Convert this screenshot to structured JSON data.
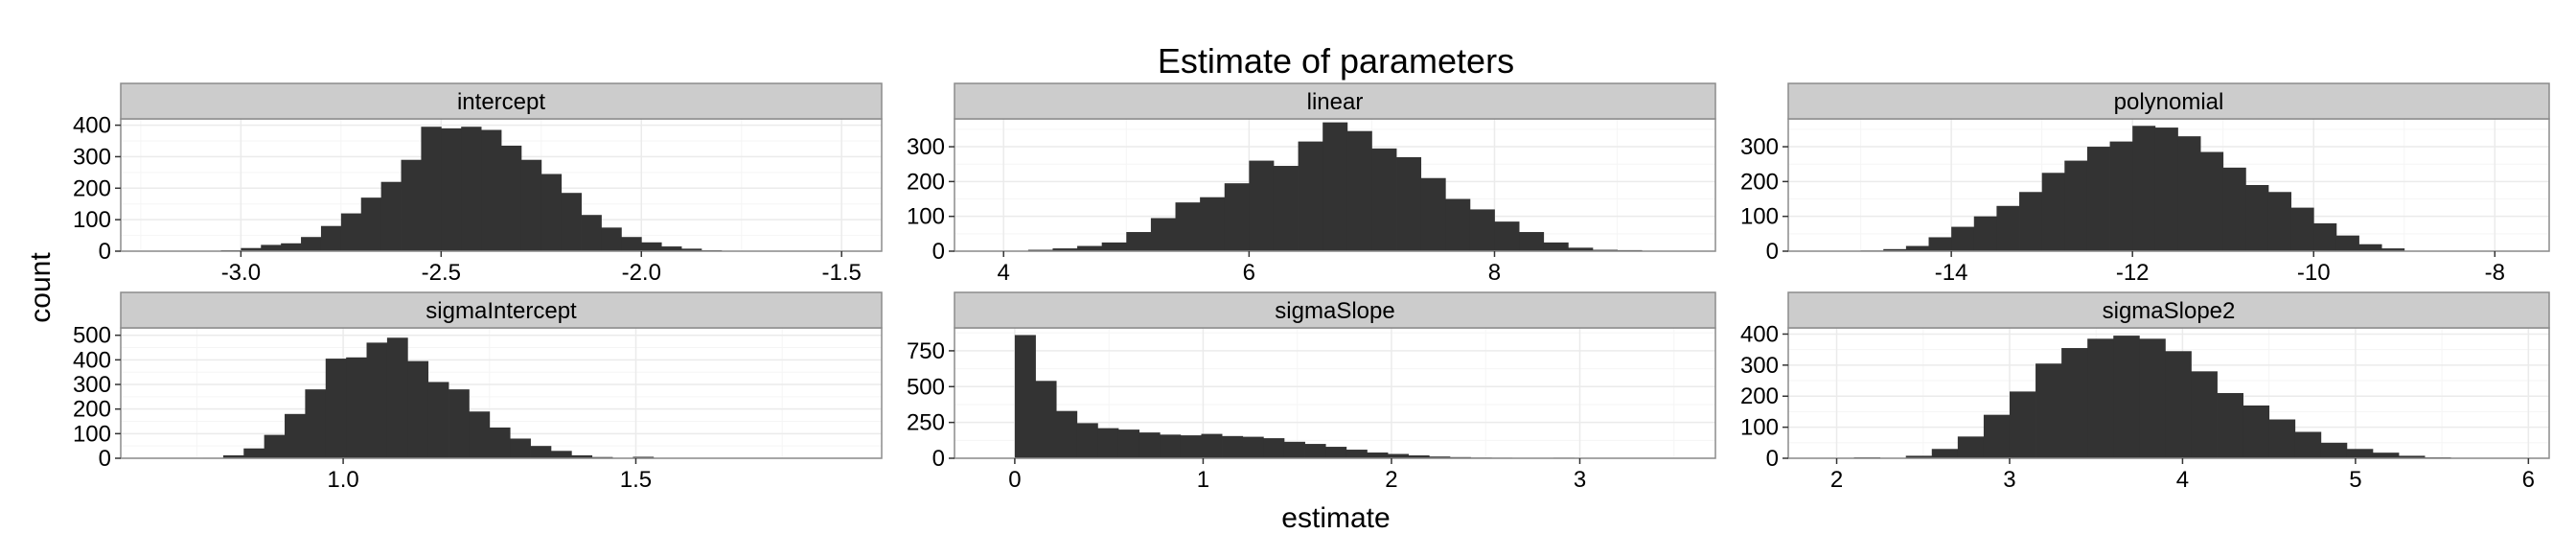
{
  "title": "Estimate of parameters",
  "xlabel": "estimate",
  "ylabel": "count",
  "colors": {
    "bar": "#333333",
    "panel_bg": "#ffffff",
    "panel_border": "#8c8c8c",
    "strip_bg": "#cccccc",
    "grid_major": "#ebebeb",
    "grid_minor": "#f5f5f5",
    "text": "#000000"
  },
  "chart_data": [
    {
      "type": "bar",
      "facet": "intercept",
      "xlim": [
        -3.3,
        -1.4
      ],
      "ylim": [
        0,
        420
      ],
      "xticks": [
        -3.0,
        -2.5,
        -2.0,
        -1.5
      ],
      "xtick_labels": [
        "-3.0",
        "-2.5",
        "-2.0",
        "-1.5"
      ],
      "yticks": [
        0,
        100,
        200,
        300,
        400
      ],
      "ytick_labels": [
        "0",
        "100",
        "200",
        "300",
        "400"
      ],
      "bins": {
        "x0": -3.1,
        "width": 0.05,
        "counts": [
          1,
          3,
          10,
          20,
          25,
          45,
          80,
          120,
          170,
          220,
          290,
          395,
          390,
          395,
          385,
          335,
          290,
          245,
          185,
          115,
          75,
          45,
          28,
          15,
          8,
          3
        ]
      }
    },
    {
      "type": "bar",
      "facet": "linear",
      "xlim": [
        3.6,
        9.8
      ],
      "ylim": [
        0,
        380
      ],
      "xticks": [
        4,
        6,
        8
      ],
      "xtick_labels": [
        "4",
        "6",
        "8"
      ],
      "yticks": [
        0,
        100,
        200,
        300
      ],
      "ytick_labels": [
        "0",
        "100",
        "200",
        "300"
      ],
      "bins": {
        "x0": 4.0,
        "width": 0.2,
        "counts": [
          1,
          4,
          8,
          15,
          25,
          55,
          95,
          140,
          155,
          195,
          260,
          245,
          315,
          370,
          345,
          295,
          270,
          210,
          150,
          120,
          85,
          55,
          25,
          10,
          4,
          3,
          1
        ]
      }
    },
    {
      "type": "bar",
      "facet": "polynomial",
      "xlim": [
        -15.8,
        -7.4
      ],
      "ylim": [
        0,
        380
      ],
      "xticks": [
        -14,
        -12,
        -10,
        -8
      ],
      "xtick_labels": [
        "-14",
        "-12",
        "-10",
        "-8"
      ],
      "yticks": [
        0,
        100,
        200,
        300
      ],
      "ytick_labels": [
        "0",
        "100",
        "200",
        "300"
      ],
      "bins": {
        "x0": -15.0,
        "width": 0.25,
        "counts": [
          2,
          6,
          15,
          40,
          70,
          100,
          130,
          170,
          225,
          260,
          300,
          315,
          360,
          355,
          330,
          285,
          240,
          190,
          170,
          125,
          80,
          45,
          20,
          8
        ]
      }
    },
    {
      "type": "bar",
      "facet": "sigmaIntercept",
      "xlim": [
        0.62,
        1.92
      ],
      "ylim": [
        0,
        530
      ],
      "xticks": [
        1.0,
        1.5
      ],
      "xtick_labels": [
        "1.0",
        "1.5"
      ],
      "yticks": [
        0,
        100,
        200,
        300,
        400,
        500
      ],
      "ytick_labels": [
        "0",
        "100",
        "200",
        "300",
        "400",
        "500"
      ],
      "bins": {
        "x0": 0.76,
        "width": 0.035,
        "counts": [
          2,
          12,
          40,
          95,
          180,
          280,
          405,
          410,
          470,
          490,
          395,
          310,
          280,
          190,
          125,
          80,
          50,
          30,
          12,
          5,
          0,
          6
        ]
      }
    },
    {
      "type": "bar",
      "facet": "sigmaSlope",
      "xlim": [
        -0.32,
        3.72
      ],
      "ylim": [
        0,
        910
      ],
      "xticks": [
        0,
        1,
        2,
        3
      ],
      "xtick_labels": [
        "0",
        "1",
        "2",
        "3"
      ],
      "yticks": [
        0,
        250,
        500,
        750
      ],
      "ytick_labels": [
        "0",
        "250",
        "500",
        "750"
      ],
      "bins": {
        "x0": 0.0,
        "width": 0.11,
        "counts": [
          860,
          540,
          330,
          245,
          210,
          200,
          180,
          165,
          160,
          170,
          155,
          150,
          140,
          115,
          100,
          80,
          60,
          40,
          30,
          20,
          12,
          8,
          5,
          4,
          3,
          0,
          4
        ]
      }
    },
    {
      "type": "bar",
      "facet": "sigmaSlope2",
      "xlim": [
        1.72,
        6.12
      ],
      "ylim": [
        0,
        420
      ],
      "xticks": [
        2,
        3,
        4,
        5,
        6
      ],
      "xtick_labels": [
        "2",
        "3",
        "4",
        "5",
        "6"
      ],
      "yticks": [
        0,
        100,
        200,
        300,
        400
      ],
      "ytick_labels": [
        "0",
        "100",
        "200",
        "300",
        "400"
      ],
      "bins": {
        "x0": 2.1,
        "width": 0.15,
        "counts": [
          3,
          0,
          8,
          30,
          70,
          140,
          215,
          305,
          355,
          385,
          395,
          385,
          345,
          280,
          210,
          170,
          125,
          85,
          50,
          30,
          18,
          8,
          3
        ]
      }
    }
  ]
}
